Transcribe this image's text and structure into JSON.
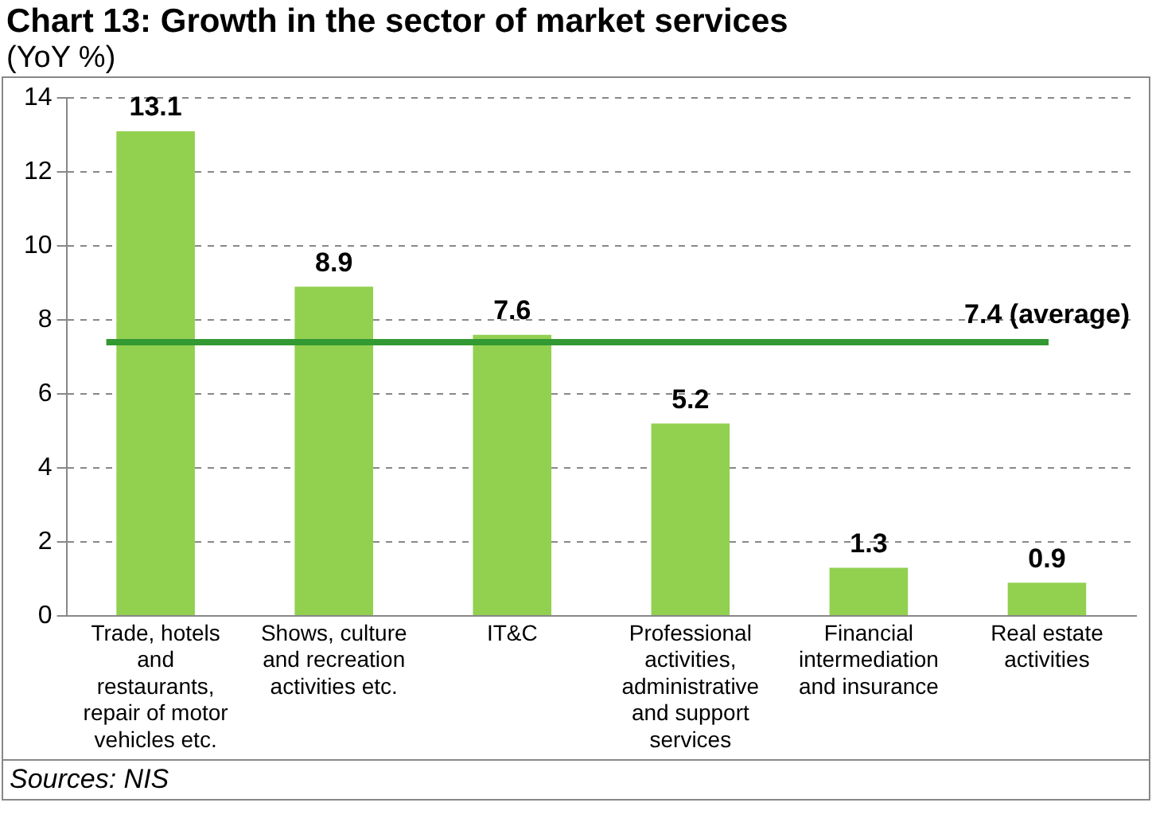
{
  "chart_data": {
    "type": "bar",
    "title": "Chart 13: Growth in the sector of market services",
    "subtitle": "(YoY %)",
    "categories": [
      "Trade, hotels and restaurants, repair of motor vehicles etc.",
      "Shows, culture and recreation activities etc.",
      "IT&C",
      "Professional activities, administrative and support services",
      "Financial intermediation and insurance",
      "Real estate activities"
    ],
    "values": [
      13.1,
      8.9,
      7.6,
      5.2,
      1.3,
      0.9
    ],
    "color": "#92d050",
    "ylim": [
      0,
      14
    ],
    "yticks": [
      0,
      2,
      4,
      6,
      8,
      10,
      12,
      14
    ],
    "grid": "y",
    "data_labels": true,
    "ref_lines": [
      {
        "axis": "y",
        "value": 7.4,
        "label": "7.4 (average)",
        "color": "#339933"
      }
    ],
    "annotations": [
      "Sources: NIS"
    ]
  }
}
